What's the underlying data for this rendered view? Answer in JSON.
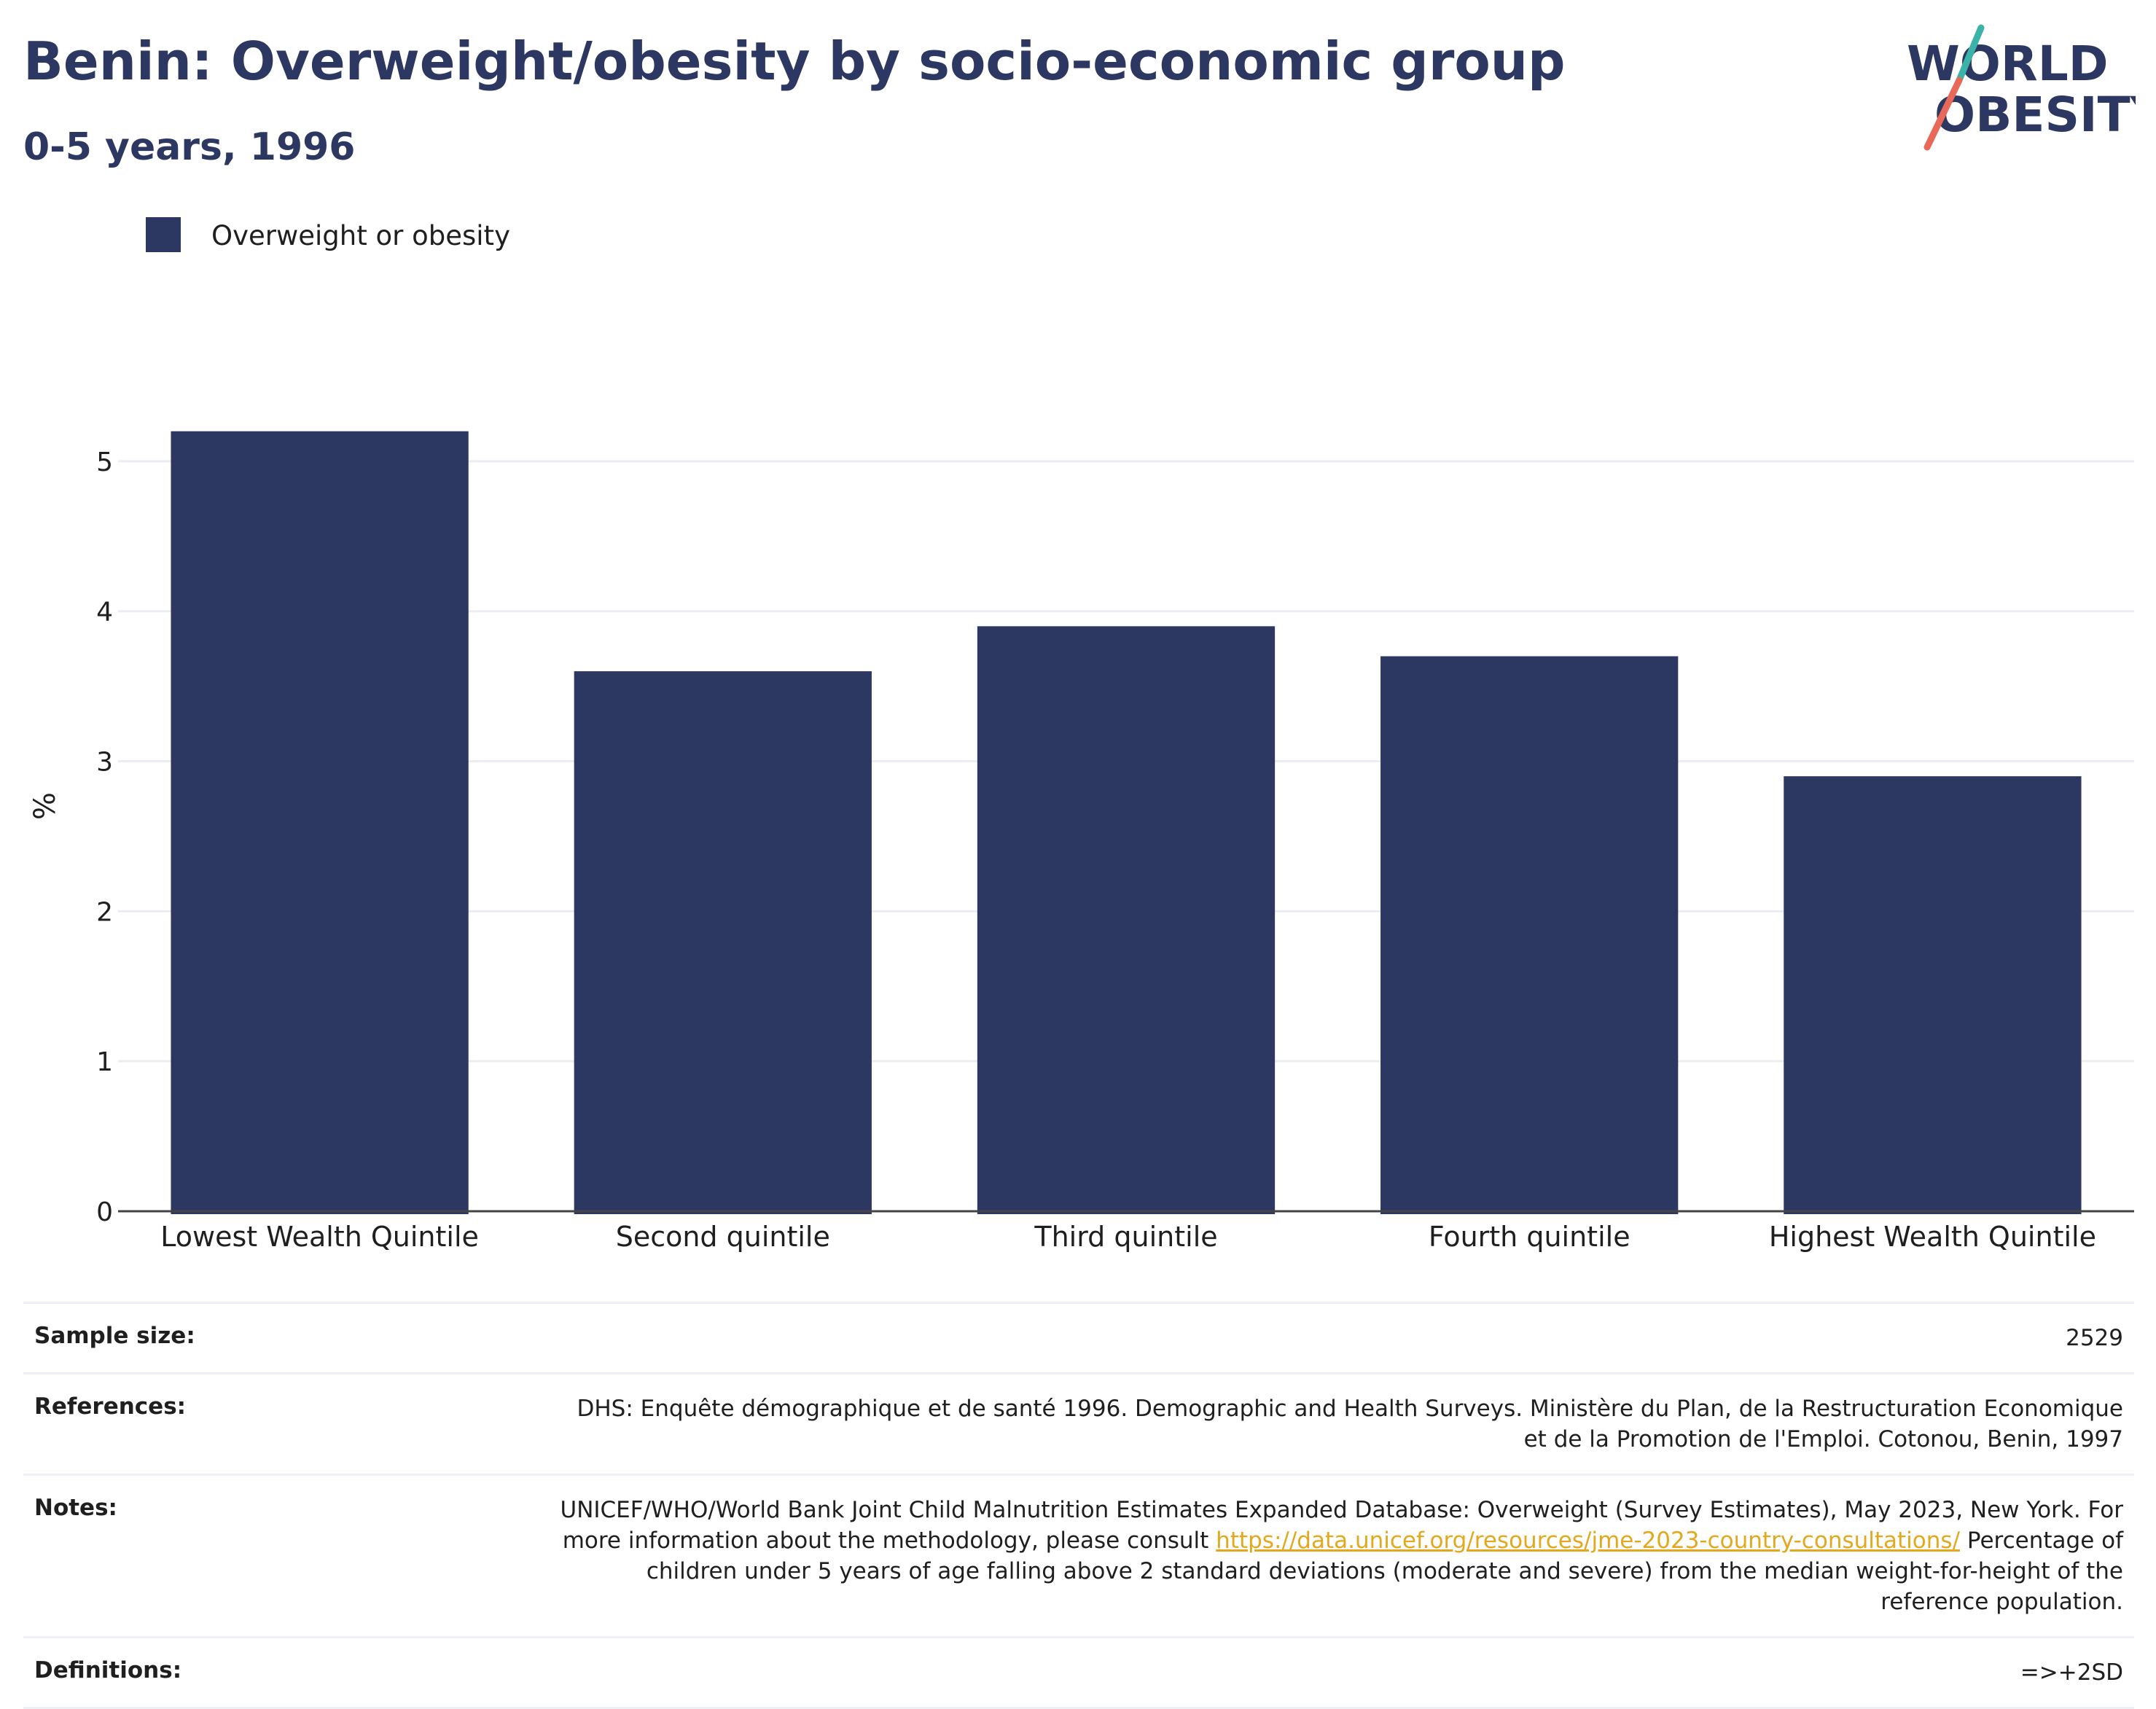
{
  "header": {
    "title": "Benin: Overweight/obesity by socio-economic group",
    "subtitle": "0-5 years, 1996"
  },
  "logo": {
    "line1": "WORLD",
    "line2": "OBESITY",
    "colors": {
      "text": "#2c3762",
      "slash_top": "#3bb3a9",
      "slash_bottom": "#e8685a"
    }
  },
  "legend": {
    "label": "Overweight or obesity",
    "color": "#2c3762"
  },
  "chart_data": {
    "type": "bar",
    "categories": [
      "Lowest Wealth Quintile",
      "Second quintile",
      "Third quintile",
      "Fourth quintile",
      "Highest Wealth Quintile"
    ],
    "series": [
      {
        "name": "Overweight or obesity",
        "values": [
          5.2,
          3.6,
          3.9,
          3.7,
          2.9
        ],
        "color": "#2c3762"
      }
    ],
    "ylabel": "%",
    "xlabel": "",
    "ylim": [
      0,
      5.5
    ],
    "yticks": [
      0,
      1,
      2,
      3,
      4,
      5
    ],
    "grid": true,
    "legend_position": "top-left"
  },
  "meta": {
    "sample_size": {
      "label": "Sample size:",
      "value": "2529"
    },
    "references": {
      "label": "References:",
      "value": "DHS: Enquête démographique et de santé 1996. Demographic and Health Surveys. Ministère du Plan, de la Restructuration Economique et de la Promotion de l'Emploi. Cotonou, Benin, 1997"
    },
    "notes": {
      "label": "Notes:",
      "text_before": "UNICEF/WHO/World Bank Joint Child Malnutrition Estimates Expanded Database: Overweight (Survey Estimates), May 2023, New York. For more information about the methodology, please consult ",
      "link": "https://data.unicef.org/resources/jme-2023-country-consultations/",
      "text_after": " Percentage of children under 5 years of age falling above 2 standard deviations (moderate and severe) from the median weight-for-height of the reference population."
    },
    "definitions": {
      "label": "Definitions:",
      "value": "=>+2SD"
    }
  }
}
